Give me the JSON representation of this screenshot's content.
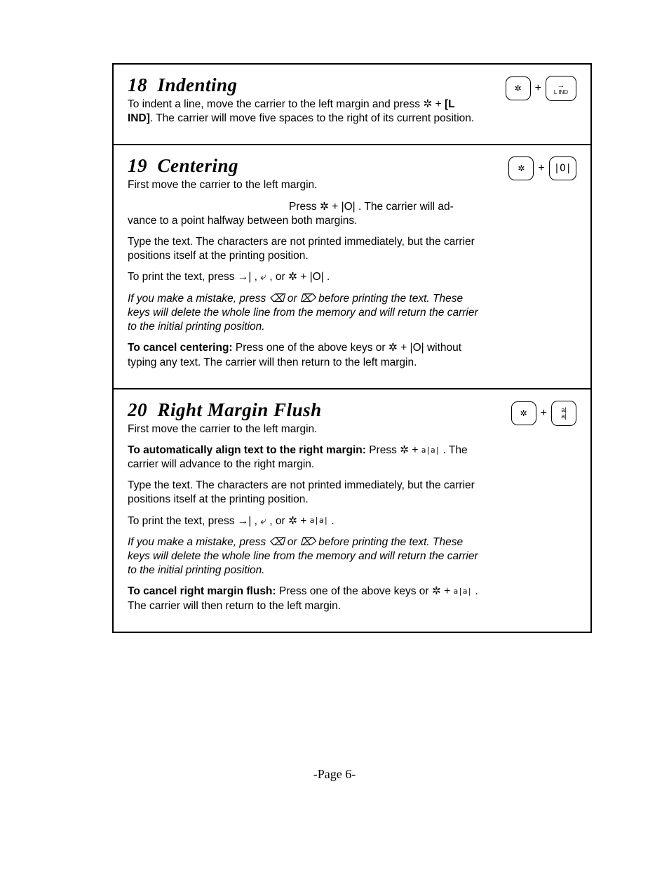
{
  "page_number_label": "-Page 6-",
  "sections": {
    "s18": {
      "number": "18",
      "title": "Indenting",
      "key1_glyph": "✲",
      "key2_top": "→",
      "key2_bottom": "L IND",
      "p1_a": "To indent a line, move the carrier to the left margin and press ",
      "p1_sym1": "✲",
      "p1_b": " + ",
      "p1_bold": "[L IND]",
      "p1_c": ". The carrier will move five spaces to the right of its current position."
    },
    "s19": {
      "number": "19",
      "title": "Centering",
      "key1_glyph": "✲",
      "key2_label": "|O|",
      "p1": "First move the carrier to the left margin.",
      "p2a": "Press ",
      "p2_sym": "✲",
      "p2b": " + |O| . The carrier will ad-",
      "p2cont": "vance to a point halfway between both margins.",
      "p3": "Type the text. The characters are not printed immediately, but the carrier positions itself at the printing position.",
      "p4a": "To print the text, press ",
      "p4_sym1": "→|",
      "p4b": " , ",
      "p4_sym2": "⤶",
      "p4c": " , or ",
      "p4_sym3": "✲",
      "p4d": " + |O| .",
      "p5a": "If you make a mistake, press ",
      "p5_sym1": "⌫",
      "p5b": " or ",
      "p5_sym2": "⌦",
      "p5c": " before printing the text. These keys will delete the whole line from the memory and will return the carrier to the initial printing position.",
      "p6_bold": "To cancel centering:",
      "p6a": " Press one of the above keys or ",
      "p6_sym": "✲",
      "p6b": " + |O| without typing any text. The carrier will then return to the left margin."
    },
    "s20": {
      "number": "20",
      "title": "Right Margin Flush",
      "key1_glyph": "✲",
      "key2_label": "a|\na|",
      "p1": "First move the carrier to the left margin.",
      "p2_bold": "To automatically align text to the right margin:",
      "p2a": " Press ",
      "p2_sym": "✲",
      "p2b": " + ",
      "p2_sym2": "a|a|",
      "p2c": " . The carrier will advance to the right margin.",
      "p3": "Type the text. The characters are not printed immediately, but the carrier positions itself at the printing position.",
      "p4a": "To print the text, press ",
      "p4_sym1": "→|",
      "p4b": " , ",
      "p4_sym2": "⤶",
      "p4c": " , or ",
      "p4_sym3": "✲",
      "p4d": " + ",
      "p4_sym4": "a|a|",
      "p4e": " .",
      "p5a": "If you make a mistake, press ",
      "p5_sym1": "⌫",
      "p5b": " or ",
      "p5_sym2": "⌦",
      "p5c": " before printing the text. These keys will delete the whole line from the memory and will return the carrier to the initial printing position.",
      "p6_bold": "To cancel right margin flush:",
      "p6a": " Press one of the above keys or ",
      "p6_sym": "✲",
      "p6b": " + ",
      "p6_sym2": "a|a|",
      "p6c": " . The carrier will then return to the left margin."
    }
  }
}
